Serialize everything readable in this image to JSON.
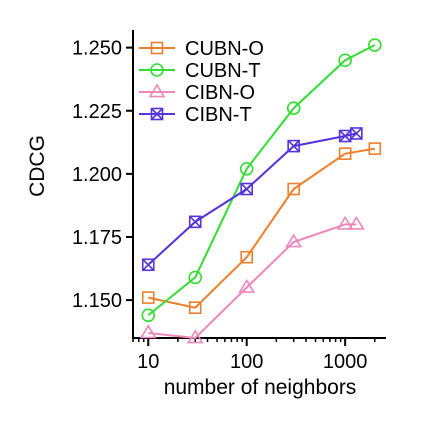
{
  "chart_data": {
    "type": "line",
    "title": "",
    "xlabel": "number of neighbors",
    "ylabel": "CDCG",
    "x_scale": "log",
    "xlim": [
      7,
      2600
    ],
    "ylim": [
      1.135,
      1.255
    ],
    "x_ticks": [
      10,
      100,
      1000
    ],
    "x_tick_labels": [
      "10",
      "100",
      "1000"
    ],
    "y_ticks": [
      1.15,
      1.175,
      1.2,
      1.225,
      1.25
    ],
    "y_tick_labels": [
      "1.150",
      "1.175",
      "1.200",
      "1.225",
      "1.250"
    ],
    "grid": false,
    "legend_position": "top-left",
    "series": [
      {
        "name": "CUBN-O",
        "color": "#ee7f2d",
        "marker": "square",
        "x": [
          10,
          30,
          100,
          300,
          1000,
          2000
        ],
        "y": [
          1.151,
          1.147,
          1.167,
          1.194,
          1.208,
          1.21
        ]
      },
      {
        "name": "CUBN-T",
        "color": "#33dd33",
        "marker": "circle",
        "x": [
          10,
          30,
          100,
          300,
          1000,
          2000
        ],
        "y": [
          1.144,
          1.159,
          1.202,
          1.226,
          1.245,
          1.251
        ]
      },
      {
        "name": "CIBN-O",
        "color": "#ee88bb",
        "marker": "triangle",
        "x": [
          10,
          30,
          100,
          300,
          1000,
          1300
        ],
        "y": [
          1.137,
          1.135,
          1.155,
          1.173,
          1.18,
          1.18
        ]
      },
      {
        "name": "CIBN-T",
        "color": "#5533dd",
        "marker": "boxx",
        "x": [
          10,
          30,
          100,
          300,
          1000,
          1300
        ],
        "y": [
          1.164,
          1.181,
          1.194,
          1.211,
          1.215,
          1.216
        ]
      }
    ]
  }
}
